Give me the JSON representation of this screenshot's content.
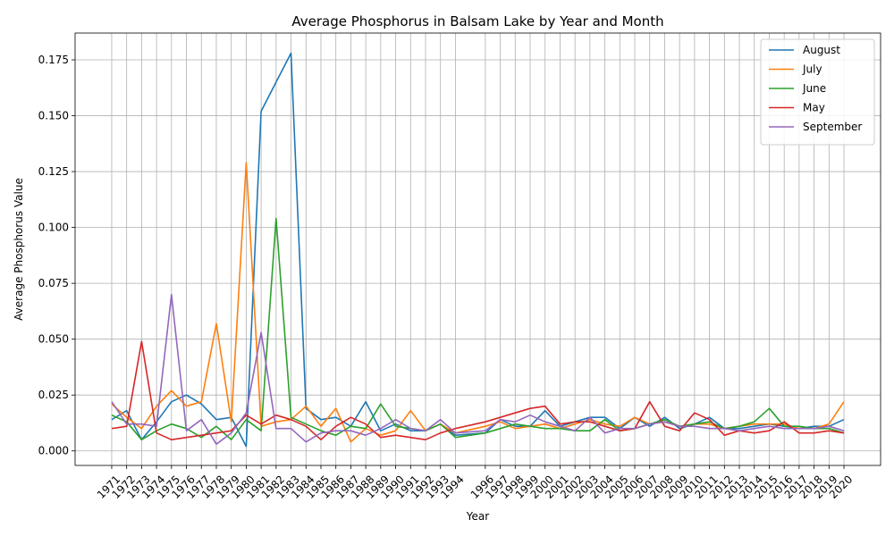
{
  "chart_data": {
    "type": "line",
    "title": "Average Phosphorus in Balsam Lake by Year and Month",
    "xlabel": "Year",
    "ylabel": "Average Phosphorus Value",
    "x": [
      "1971",
      "1972",
      "1973",
      "1974",
      "1975",
      "1976",
      "1977",
      "1978",
      "1979",
      "1980",
      "1981",
      "1982",
      "1983",
      "1984",
      "1985",
      "1986",
      "1987",
      "1988",
      "1989",
      "1990",
      "1991",
      "1992",
      "1993",
      "1994",
      "1996",
      "1997",
      "1998",
      "1999",
      "2000",
      "2001",
      "2002",
      "2003",
      "2004",
      "2005",
      "2006",
      "2007",
      "2008",
      "2009",
      "2010",
      "2011",
      "2012",
      "2013",
      "2014",
      "2015",
      "2016",
      "2017",
      "2018",
      "2019",
      "2020"
    ],
    "ylim": [
      -0.0065,
      0.187
    ],
    "yticks": [
      0.0,
      0.025,
      0.05,
      0.075,
      0.1,
      0.125,
      0.15,
      0.175
    ],
    "ytick_labels": [
      "0.000",
      "0.025",
      "0.050",
      "0.075",
      "0.100",
      "0.125",
      "0.150",
      "0.175"
    ],
    "grid": true,
    "legend_position": "top-right",
    "series": [
      {
        "name": "August",
        "color": "#1f77b4",
        "values": [
          0.014,
          0.018,
          0.005,
          0.013,
          0.022,
          0.025,
          0.021,
          0.014,
          0.015,
          0.002,
          0.152,
          0.165,
          0.178,
          0.019,
          0.014,
          0.015,
          0.011,
          0.022,
          0.009,
          0.012,
          0.009,
          0.009,
          0.012,
          0.007,
          0.008,
          0.014,
          0.011,
          0.011,
          0.018,
          0.011,
          0.013,
          0.015,
          0.015,
          0.01,
          0.015,
          0.011,
          0.015,
          0.01,
          0.012,
          0.015,
          0.01,
          0.01,
          0.011,
          0.012,
          0.011,
          0.01,
          0.011,
          0.011,
          0.014
        ]
      },
      {
        "name": "July",
        "color": "#ff7f0e",
        "values": [
          0.021,
          0.015,
          0.01,
          0.02,
          0.027,
          0.02,
          0.022,
          0.057,
          0.013,
          0.129,
          0.011,
          0.013,
          0.014,
          0.02,
          0.011,
          0.019,
          0.004,
          0.01,
          0.007,
          0.009,
          0.018,
          0.009,
          0.012,
          0.008,
          0.011,
          0.013,
          0.01,
          0.011,
          0.012,
          0.01,
          0.012,
          0.014,
          0.012,
          0.011,
          0.015,
          0.012,
          0.013,
          0.011,
          0.012,
          0.012,
          0.01,
          0.011,
          0.012,
          0.012,
          0.012,
          0.01,
          0.01,
          0.012,
          0.022
        ]
      },
      {
        "name": "June",
        "color": "#2ca02c",
        "values": [
          0.016,
          0.013,
          0.005,
          0.009,
          0.012,
          0.01,
          0.006,
          0.011,
          0.005,
          0.014,
          0.009,
          0.104,
          0.015,
          0.012,
          0.009,
          0.007,
          0.011,
          0.01,
          0.021,
          0.011,
          0.01,
          0.009,
          0.012,
          0.006,
          0.008,
          0.01,
          0.012,
          0.011,
          0.01,
          0.01,
          0.009,
          0.009,
          0.014,
          0.009,
          0.01,
          0.012,
          0.014,
          0.011,
          0.012,
          0.013,
          0.01,
          0.011,
          0.013,
          0.019,
          0.011,
          0.011,
          0.01,
          0.01,
          0.008
        ]
      },
      {
        "name": "May",
        "color": "#d62728",
        "values": [
          0.01,
          0.011,
          0.049,
          0.008,
          0.005,
          0.006,
          0.007,
          0.008,
          0.009,
          0.016,
          0.012,
          0.016,
          0.014,
          0.011,
          0.005,
          0.011,
          0.015,
          0.012,
          0.006,
          0.007,
          0.006,
          0.005,
          0.008,
          0.01,
          0.013,
          0.015,
          0.017,
          0.019,
          0.02,
          0.012,
          0.013,
          0.013,
          0.011,
          0.009,
          0.01,
          0.022,
          0.011,
          0.009,
          0.017,
          0.014,
          0.007,
          0.009,
          0.008,
          0.009,
          0.013,
          0.008,
          0.008,
          0.009,
          0.008
        ]
      },
      {
        "name": "September",
        "color": "#9467bd",
        "values": [
          0.022,
          0.012,
          0.012,
          0.011,
          0.07,
          0.009,
          0.014,
          0.003,
          0.008,
          0.017,
          0.053,
          0.01,
          0.01,
          0.004,
          0.008,
          0.009,
          0.009,
          0.007,
          0.01,
          0.014,
          0.01,
          0.009,
          0.014,
          0.008,
          0.009,
          0.014,
          0.013,
          0.016,
          0.013,
          0.011,
          0.009,
          0.015,
          0.008,
          0.01,
          0.01,
          0.012,
          0.013,
          0.011,
          0.011,
          0.01,
          0.01,
          0.009,
          0.01,
          0.011,
          0.01,
          0.01,
          0.01,
          0.011,
          0.009
        ]
      }
    ]
  }
}
